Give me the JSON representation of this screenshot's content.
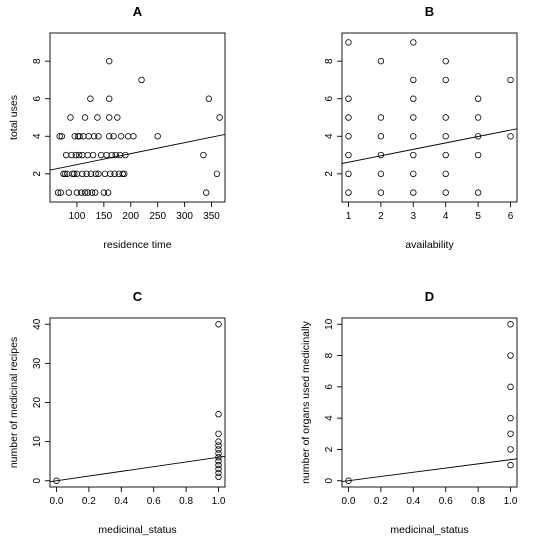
{
  "chart_data": [
    {
      "type": "scatter",
      "title": "A",
      "xlabel": "residence time",
      "ylabel": "total uses",
      "xlim": [
        50,
        375
      ],
      "ylim": [
        0.5,
        9.5
      ],
      "xticks": [
        100,
        150,
        200,
        250,
        300,
        350
      ],
      "yticks": [
        2,
        4,
        6,
        8
      ],
      "points": [
        [
          65,
          1
        ],
        [
          70,
          1
        ],
        [
          68,
          4
        ],
        [
          72,
          4
        ],
        [
          75,
          2
        ],
        [
          78,
          2
        ],
        [
          80,
          3
        ],
        [
          82,
          2
        ],
        [
          85,
          1
        ],
        [
          88,
          5
        ],
        [
          90,
          3
        ],
        [
          92,
          2
        ],
        [
          95,
          2
        ],
        [
          96,
          4
        ],
        [
          98,
          3
        ],
        [
          100,
          1
        ],
        [
          100,
          2
        ],
        [
          102,
          4
        ],
        [
          104,
          3
        ],
        [
          105,
          4
        ],
        [
          108,
          1
        ],
        [
          110,
          2
        ],
        [
          110,
          3
        ],
        [
          112,
          4
        ],
        [
          115,
          1
        ],
        [
          115,
          5
        ],
        [
          118,
          2
        ],
        [
          120,
          1
        ],
        [
          120,
          3
        ],
        [
          122,
          4
        ],
        [
          125,
          6
        ],
        [
          126,
          2
        ],
        [
          128,
          1
        ],
        [
          130,
          3
        ],
        [
          132,
          4
        ],
        [
          134,
          1
        ],
        [
          135,
          2
        ],
        [
          138,
          5
        ],
        [
          140,
          2
        ],
        [
          140,
          4
        ],
        [
          145,
          3
        ],
        [
          150,
          1
        ],
        [
          152,
          2
        ],
        [
          155,
          3
        ],
        [
          158,
          1
        ],
        [
          160,
          4
        ],
        [
          160,
          5
        ],
        [
          160,
          6
        ],
        [
          160,
          8
        ],
        [
          162,
          2
        ],
        [
          165,
          3
        ],
        [
          168,
          4
        ],
        [
          170,
          2
        ],
        [
          172,
          3
        ],
        [
          175,
          5
        ],
        [
          178,
          2
        ],
        [
          180,
          3
        ],
        [
          182,
          4
        ],
        [
          185,
          2
        ],
        [
          188,
          2
        ],
        [
          190,
          3
        ],
        [
          195,
          4
        ],
        [
          205,
          4
        ],
        [
          220,
          7
        ],
        [
          250,
          4
        ],
        [
          335,
          3
        ],
        [
          340,
          1
        ],
        [
          345,
          6
        ],
        [
          360,
          2
        ],
        [
          365,
          5
        ]
      ],
      "fit_line": [
        [
          50,
          2.2
        ],
        [
          375,
          4.1
        ]
      ]
    },
    {
      "type": "scatter",
      "title": "B",
      "xlabel": "availability",
      "ylabel": "",
      "xlim": [
        0.8,
        6.2
      ],
      "ylim": [
        0.5,
        9.5
      ],
      "xticks": [
        1,
        2,
        3,
        4,
        5,
        6
      ],
      "yticks": [
        2,
        4,
        6,
        8
      ],
      "points": [
        [
          1,
          1
        ],
        [
          1,
          2
        ],
        [
          1,
          3
        ],
        [
          1,
          4
        ],
        [
          1,
          5
        ],
        [
          1,
          6
        ],
        [
          1,
          9
        ],
        [
          2,
          1
        ],
        [
          2,
          2
        ],
        [
          2,
          3
        ],
        [
          2,
          4
        ],
        [
          2,
          5
        ],
        [
          2,
          8
        ],
        [
          3,
          1
        ],
        [
          3,
          2
        ],
        [
          3,
          3
        ],
        [
          3,
          4
        ],
        [
          3,
          5
        ],
        [
          3,
          6
        ],
        [
          3,
          7
        ],
        [
          3,
          9
        ],
        [
          4,
          1
        ],
        [
          4,
          2
        ],
        [
          4,
          3
        ],
        [
          4,
          4
        ],
        [
          4,
          5
        ],
        [
          4,
          7
        ],
        [
          4,
          8
        ],
        [
          5,
          1
        ],
        [
          5,
          3
        ],
        [
          5,
          4
        ],
        [
          5,
          5
        ],
        [
          5,
          6
        ],
        [
          6,
          4
        ],
        [
          6,
          7
        ]
      ],
      "fit_line": [
        [
          0.8,
          2.55
        ],
        [
          6.2,
          4.4
        ]
      ]
    },
    {
      "type": "scatter",
      "title": "C",
      "xlabel": "medicinal_status",
      "ylabel": "number of medicinal recipes",
      "xlim": [
        -0.04,
        1.04
      ],
      "ylim": [
        -1.6,
        41.6
      ],
      "xticks": [
        0.0,
        0.2,
        0.4,
        0.6,
        0.8,
        1.0
      ],
      "yticks": [
        0,
        10,
        20,
        30,
        40
      ],
      "points": [
        [
          0,
          0
        ],
        [
          1,
          1
        ],
        [
          1,
          2
        ],
        [
          1,
          3
        ],
        [
          1,
          4
        ],
        [
          1,
          5
        ],
        [
          1,
          6
        ],
        [
          1,
          7
        ],
        [
          1,
          8
        ],
        [
          1,
          9
        ],
        [
          1,
          10
        ],
        [
          1,
          12
        ],
        [
          1,
          17
        ],
        [
          1,
          40
        ]
      ],
      "fit_line": [
        [
          -0.04,
          -0.24
        ],
        [
          1.04,
          6.24
        ]
      ]
    },
    {
      "type": "scatter",
      "title": "D",
      "xlabel": "medicinal_status",
      "ylabel": "number of organs used medicinally",
      "xlim": [
        -0.04,
        1.04
      ],
      "ylim": [
        -0.4,
        10.4
      ],
      "xticks": [
        0.0,
        0.2,
        0.4,
        0.6,
        0.8,
        1.0
      ],
      "yticks": [
        0,
        2,
        4,
        6,
        8,
        10
      ],
      "points": [
        [
          0,
          0
        ],
        [
          1,
          1
        ],
        [
          1,
          2
        ],
        [
          1,
          3
        ],
        [
          1,
          4
        ],
        [
          1,
          6
        ],
        [
          1,
          8
        ],
        [
          1,
          10
        ]
      ],
      "fit_line": [
        [
          -0.04,
          -0.05
        ],
        [
          1.04,
          1.4
        ]
      ]
    }
  ]
}
